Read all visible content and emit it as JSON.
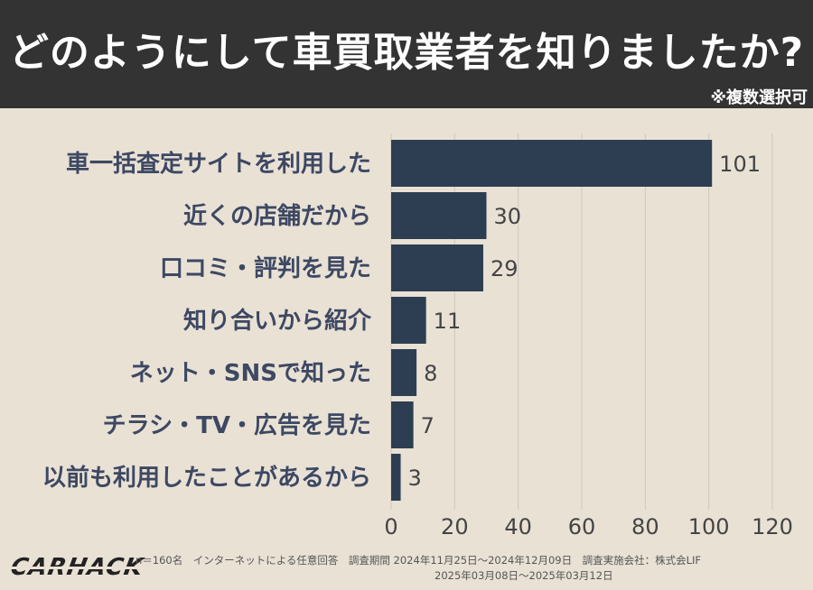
{
  "header": {
    "title": "どのようにして車買取業者を知りましたか?",
    "note": "※複数選択可"
  },
  "footer": {
    "logo": "CARHACK",
    "line1": "n＝160名　インターネットによる任意回答　調査期間  2024年11月25日〜2024年12月09日　調査実施会社：株式会LIF",
    "line2": "2025年03月08日〜2025年03月12日"
  },
  "colors": {
    "bar": "#2d3e52",
    "label": "#3d4863",
    "value": "#444444",
    "grid": "#cfc7ba",
    "background": "#e9e1d4",
    "header": "#333333"
  },
  "chart_data": {
    "type": "bar",
    "orientation": "horizontal",
    "title": "どのようにして車買取業者を知りましたか?",
    "categories": [
      "車一括査定サイトを利用した",
      "近くの店舗だから",
      "口コミ・評判を見た",
      "知り合いから紹介",
      "ネット・SNSで知った",
      "チラシ・TV・広告を見た",
      "以前も利用したことがあるから"
    ],
    "values": [
      101,
      30,
      29,
      11,
      8,
      7,
      3
    ],
    "xlim": [
      0,
      120
    ],
    "xticks": [
      0,
      20,
      40,
      60,
      80,
      100,
      120
    ],
    "grid": true,
    "legend": "none"
  }
}
